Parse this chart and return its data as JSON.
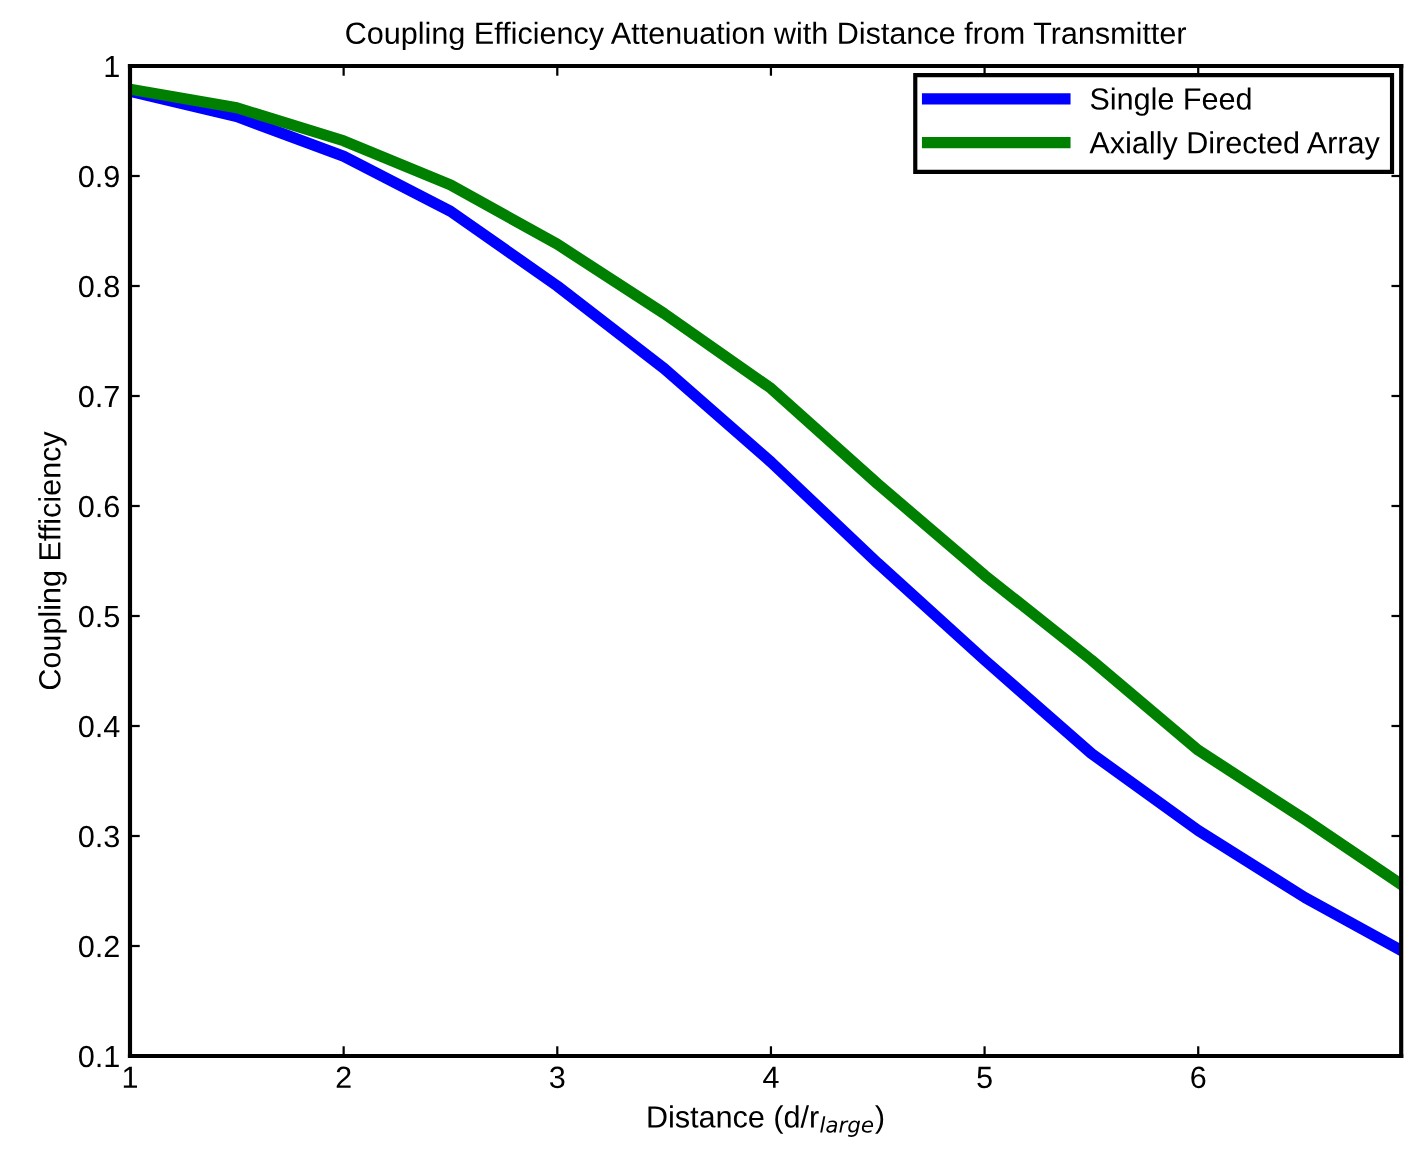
{
  "chart_data": {
    "type": "line",
    "title": "Coupling Efficiency Attenuation with Distance from Transmitter",
    "xlabel": "Distance (d/r$_{large}$)",
    "ylabel": "Coupling Efficiency",
    "x": [
      1,
      1.5,
      2,
      2.5,
      3,
      3.5,
      4,
      4.5,
      5,
      5.5,
      6,
      6.5,
      6.95
    ],
    "series": [
      {
        "name": "Single Feed",
        "color": "#0000ff",
        "values": [
          0.977,
          0.954,
          0.918,
          0.868,
          0.8,
          0.725,
          0.64,
          0.548,
          0.46,
          0.375,
          0.305,
          0.244,
          0.196
        ]
      },
      {
        "name": "Axially Directed Array",
        "color": "#008000",
        "values": [
          0.979,
          0.962,
          0.932,
          0.892,
          0.838,
          0.775,
          0.707,
          0.62,
          0.537,
          0.46,
          0.378,
          0.315,
          0.256
        ]
      }
    ],
    "xlim": [
      1,
      6.95
    ],
    "xticks": [
      1,
      2,
      3,
      4,
      5,
      6
    ],
    "ylim": [
      0.1,
      1
    ],
    "yticks": [
      0.1,
      0.2,
      0.3,
      0.4,
      0.5,
      0.6,
      0.7,
      0.8,
      0.9,
      1
    ],
    "grid": false,
    "legend": "top right",
    "marker": "none",
    "line_style": "solid"
  }
}
